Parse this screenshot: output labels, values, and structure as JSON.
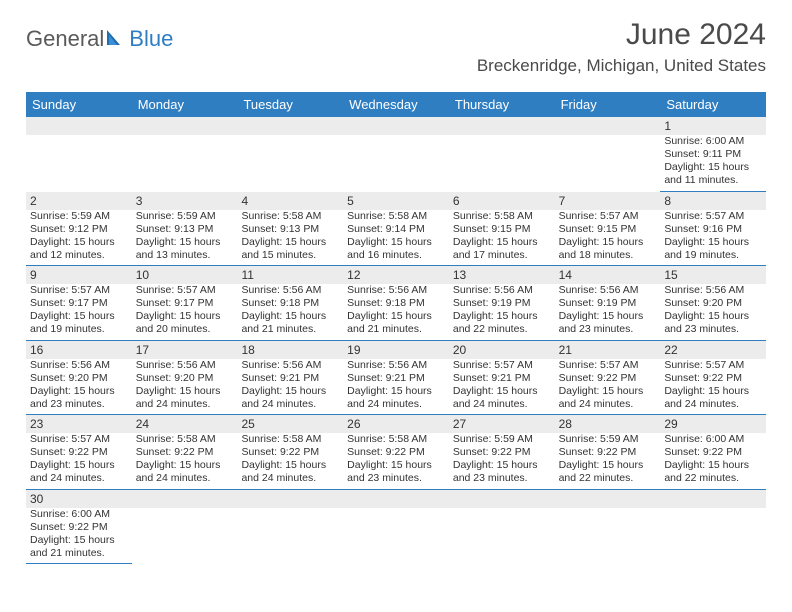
{
  "brand": {
    "part1": "General",
    "part2": "Blue"
  },
  "title": "June 2024",
  "location": "Breckenridge, Michigan, United States",
  "colors": {
    "header_bg": "#2f7ec2",
    "header_text": "#ffffff",
    "daynum_bg": "#ececec",
    "cell_border": "#2f7ec2",
    "page_bg": "#ffffff",
    "text": "#333333",
    "title_text": "#4a4a4a"
  },
  "day_headers": [
    "Sunday",
    "Monday",
    "Tuesday",
    "Wednesday",
    "Thursday",
    "Friday",
    "Saturday"
  ],
  "weeks": [
    {
      "nums": [
        "",
        "",
        "",
        "",
        "",
        "",
        "1"
      ],
      "cells": [
        null,
        null,
        null,
        null,
        null,
        null,
        {
          "sunrise": "Sunrise: 6:00 AM",
          "sunset": "Sunset: 9:11 PM",
          "daylight": "Daylight: 15 hours and 11 minutes."
        }
      ]
    },
    {
      "nums": [
        "2",
        "3",
        "4",
        "5",
        "6",
        "7",
        "8"
      ],
      "cells": [
        {
          "sunrise": "Sunrise: 5:59 AM",
          "sunset": "Sunset: 9:12 PM",
          "daylight": "Daylight: 15 hours and 12 minutes."
        },
        {
          "sunrise": "Sunrise: 5:59 AM",
          "sunset": "Sunset: 9:13 PM",
          "daylight": "Daylight: 15 hours and 13 minutes."
        },
        {
          "sunrise": "Sunrise: 5:58 AM",
          "sunset": "Sunset: 9:13 PM",
          "daylight": "Daylight: 15 hours and 15 minutes."
        },
        {
          "sunrise": "Sunrise: 5:58 AM",
          "sunset": "Sunset: 9:14 PM",
          "daylight": "Daylight: 15 hours and 16 minutes."
        },
        {
          "sunrise": "Sunrise: 5:58 AM",
          "sunset": "Sunset: 9:15 PM",
          "daylight": "Daylight: 15 hours and 17 minutes."
        },
        {
          "sunrise": "Sunrise: 5:57 AM",
          "sunset": "Sunset: 9:15 PM",
          "daylight": "Daylight: 15 hours and 18 minutes."
        },
        {
          "sunrise": "Sunrise: 5:57 AM",
          "sunset": "Sunset: 9:16 PM",
          "daylight": "Daylight: 15 hours and 19 minutes."
        }
      ]
    },
    {
      "nums": [
        "9",
        "10",
        "11",
        "12",
        "13",
        "14",
        "15"
      ],
      "cells": [
        {
          "sunrise": "Sunrise: 5:57 AM",
          "sunset": "Sunset: 9:17 PM",
          "daylight": "Daylight: 15 hours and 19 minutes."
        },
        {
          "sunrise": "Sunrise: 5:57 AM",
          "sunset": "Sunset: 9:17 PM",
          "daylight": "Daylight: 15 hours and 20 minutes."
        },
        {
          "sunrise": "Sunrise: 5:56 AM",
          "sunset": "Sunset: 9:18 PM",
          "daylight": "Daylight: 15 hours and 21 minutes."
        },
        {
          "sunrise": "Sunrise: 5:56 AM",
          "sunset": "Sunset: 9:18 PM",
          "daylight": "Daylight: 15 hours and 21 minutes."
        },
        {
          "sunrise": "Sunrise: 5:56 AM",
          "sunset": "Sunset: 9:19 PM",
          "daylight": "Daylight: 15 hours and 22 minutes."
        },
        {
          "sunrise": "Sunrise: 5:56 AM",
          "sunset": "Sunset: 9:19 PM",
          "daylight": "Daylight: 15 hours and 23 minutes."
        },
        {
          "sunrise": "Sunrise: 5:56 AM",
          "sunset": "Sunset: 9:20 PM",
          "daylight": "Daylight: 15 hours and 23 minutes."
        }
      ]
    },
    {
      "nums": [
        "16",
        "17",
        "18",
        "19",
        "20",
        "21",
        "22"
      ],
      "cells": [
        {
          "sunrise": "Sunrise: 5:56 AM",
          "sunset": "Sunset: 9:20 PM",
          "daylight": "Daylight: 15 hours and 23 minutes."
        },
        {
          "sunrise": "Sunrise: 5:56 AM",
          "sunset": "Sunset: 9:20 PM",
          "daylight": "Daylight: 15 hours and 24 minutes."
        },
        {
          "sunrise": "Sunrise: 5:56 AM",
          "sunset": "Sunset: 9:21 PM",
          "daylight": "Daylight: 15 hours and 24 minutes."
        },
        {
          "sunrise": "Sunrise: 5:56 AM",
          "sunset": "Sunset: 9:21 PM",
          "daylight": "Daylight: 15 hours and 24 minutes."
        },
        {
          "sunrise": "Sunrise: 5:57 AM",
          "sunset": "Sunset: 9:21 PM",
          "daylight": "Daylight: 15 hours and 24 minutes."
        },
        {
          "sunrise": "Sunrise: 5:57 AM",
          "sunset": "Sunset: 9:22 PM",
          "daylight": "Daylight: 15 hours and 24 minutes."
        },
        {
          "sunrise": "Sunrise: 5:57 AM",
          "sunset": "Sunset: 9:22 PM",
          "daylight": "Daylight: 15 hours and 24 minutes."
        }
      ]
    },
    {
      "nums": [
        "23",
        "24",
        "25",
        "26",
        "27",
        "28",
        "29"
      ],
      "cells": [
        {
          "sunrise": "Sunrise: 5:57 AM",
          "sunset": "Sunset: 9:22 PM",
          "daylight": "Daylight: 15 hours and 24 minutes."
        },
        {
          "sunrise": "Sunrise: 5:58 AM",
          "sunset": "Sunset: 9:22 PM",
          "daylight": "Daylight: 15 hours and 24 minutes."
        },
        {
          "sunrise": "Sunrise: 5:58 AM",
          "sunset": "Sunset: 9:22 PM",
          "daylight": "Daylight: 15 hours and 24 minutes."
        },
        {
          "sunrise": "Sunrise: 5:58 AM",
          "sunset": "Sunset: 9:22 PM",
          "daylight": "Daylight: 15 hours and 23 minutes."
        },
        {
          "sunrise": "Sunrise: 5:59 AM",
          "sunset": "Sunset: 9:22 PM",
          "daylight": "Daylight: 15 hours and 23 minutes."
        },
        {
          "sunrise": "Sunrise: 5:59 AM",
          "sunset": "Sunset: 9:22 PM",
          "daylight": "Daylight: 15 hours and 22 minutes."
        },
        {
          "sunrise": "Sunrise: 6:00 AM",
          "sunset": "Sunset: 9:22 PM",
          "daylight": "Daylight: 15 hours and 22 minutes."
        }
      ]
    },
    {
      "nums": [
        "30",
        "",
        "",
        "",
        "",
        "",
        ""
      ],
      "cells": [
        {
          "sunrise": "Sunrise: 6:00 AM",
          "sunset": "Sunset: 9:22 PM",
          "daylight": "Daylight: 15 hours and 21 minutes."
        },
        null,
        null,
        null,
        null,
        null,
        null
      ]
    }
  ]
}
